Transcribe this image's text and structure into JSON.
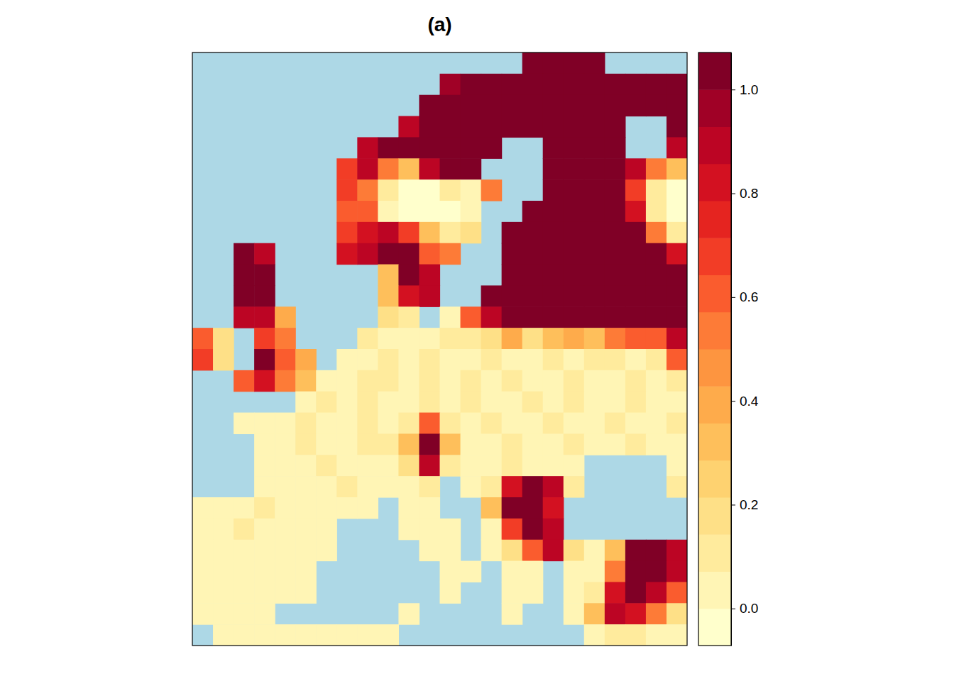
{
  "chart_data": {
    "type": "heatmap",
    "title": "(a)",
    "tick_labels": false,
    "color_range": [
      -0.0714,
      1.0714
    ],
    "color_ticks": [
      {
        "value": 0,
        "label": "0.0"
      },
      {
        "value": 0.2,
        "label": "0.2"
      },
      {
        "value": 0.4,
        "label": "0.4"
      },
      {
        "value": 0.6,
        "label": "0.6"
      },
      {
        "value": 0.8,
        "label": "0.8"
      },
      {
        "value": 1,
        "label": "1.0"
      }
    ],
    "cells": [
      [
        null,
        null,
        null,
        null,
        null,
        null,
        null,
        null,
        null,
        null,
        null,
        null,
        null,
        null,
        null,
        null,
        1.0,
        1.0,
        1.0,
        1.0,
        null,
        null,
        null,
        null
      ],
      [
        null,
        null,
        null,
        null,
        null,
        null,
        null,
        null,
        null,
        null,
        null,
        null,
        0.95,
        1.0,
        1.0,
        1.0,
        1.0,
        1.0,
        1.0,
        1.0,
        1.0,
        1.0,
        1.0,
        1.0
      ],
      [
        null,
        null,
        null,
        null,
        null,
        null,
        null,
        null,
        null,
        null,
        null,
        1.0,
        1.0,
        1.0,
        1.0,
        1.0,
        1.0,
        1.0,
        1.0,
        1.0,
        1.0,
        1.0,
        1.0,
        1.0
      ],
      [
        null,
        null,
        null,
        null,
        null,
        null,
        null,
        null,
        null,
        null,
        0.9,
        1.0,
        1.0,
        1.0,
        1.0,
        1.0,
        1.0,
        1.0,
        1.0,
        1.0,
        1.0,
        null,
        null,
        1.0
      ],
      [
        null,
        null,
        null,
        null,
        null,
        null,
        null,
        null,
        0.9,
        1.0,
        1.0,
        1.0,
        1.0,
        1.0,
        1.0,
        null,
        null,
        1.0,
        1.0,
        1.0,
        1.0,
        null,
        null,
        0.9
      ],
      [
        null,
        null,
        null,
        null,
        null,
        null,
        null,
        0.7,
        0.9,
        0.5,
        0.3,
        0.9,
        1.0,
        1.0,
        null,
        null,
        null,
        1.0,
        1.0,
        1.0,
        1.0,
        0.9,
        0.5,
        0.3
      ],
      [
        null,
        null,
        null,
        null,
        null,
        null,
        null,
        0.7,
        0.5,
        0.1,
        0,
        0,
        0.1,
        0.05,
        0.5,
        null,
        null,
        1.0,
        1.0,
        1.0,
        1.0,
        0.7,
        0.1,
        0
      ],
      [
        null,
        null,
        null,
        null,
        null,
        null,
        null,
        0.6,
        0.6,
        0.05,
        0,
        0,
        0,
        0.05,
        null,
        null,
        1.0,
        1.0,
        1.0,
        1.0,
        1.0,
        0.8,
        0.1,
        0
      ],
      [
        null,
        null,
        null,
        null,
        null,
        null,
        null,
        0.7,
        0.8,
        0.9,
        0.7,
        0.3,
        0.1,
        0.2,
        null,
        1.0,
        1.0,
        1.0,
        1.0,
        1.0,
        1.0,
        1.0,
        0.5,
        0.1
      ],
      [
        null,
        null,
        1.0,
        0.9,
        null,
        null,
        null,
        0.8,
        0.9,
        1.0,
        1.0,
        0.6,
        0.5,
        null,
        null,
        1.0,
        1.0,
        1.0,
        1.0,
        1.0,
        1.0,
        1.0,
        1.0,
        0.8
      ],
      [
        null,
        null,
        1.0,
        1.0,
        null,
        null,
        null,
        null,
        null,
        0.3,
        1.0,
        0.9,
        null,
        null,
        null,
        1.0,
        1.0,
        1.0,
        1.0,
        1.0,
        1.0,
        1.0,
        1.0,
        1.0
      ],
      [
        null,
        null,
        1.0,
        1.0,
        null,
        null,
        null,
        null,
        null,
        0.3,
        0.8,
        0.9,
        null,
        null,
        1.0,
        1.0,
        1.0,
        1.0,
        1.0,
        1.0,
        1.0,
        1.0,
        1.0,
        1.0
      ],
      [
        null,
        null,
        0.9,
        0.9,
        0.4,
        null,
        null,
        null,
        null,
        0.2,
        0.1,
        null,
        0.05,
        0.6,
        0.9,
        1.0,
        1.0,
        1.0,
        1.0,
        1.0,
        1.0,
        1.0,
        1.0,
        1.0
      ],
      [
        0.6,
        0.2,
        null,
        0.7,
        0.5,
        null,
        null,
        null,
        0.1,
        0.05,
        0.05,
        0.05,
        0.1,
        0.1,
        0.2,
        0.4,
        0.2,
        0.3,
        0.4,
        0.3,
        0.5,
        0.6,
        0.6,
        0.9
      ],
      [
        0.7,
        0.2,
        null,
        1.0,
        0.6,
        0.4,
        null,
        0.05,
        0.05,
        0.1,
        0.05,
        0.1,
        0.05,
        0.05,
        0.1,
        0.05,
        0.05,
        0.1,
        0.05,
        0.1,
        0.1,
        0.05,
        0.1,
        0.6
      ],
      [
        null,
        null,
        0.6,
        0.8,
        0.5,
        0.3,
        0.05,
        0.05,
        0.1,
        0.1,
        0.05,
        0.1,
        0.05,
        0.1,
        0.05,
        0.1,
        0.05,
        0.05,
        0.1,
        0.05,
        0.05,
        0.1,
        0.05,
        0.1
      ],
      [
        null,
        null,
        null,
        null,
        null,
        0.05,
        0.1,
        0.05,
        0.1,
        0.05,
        0.05,
        0.1,
        0.05,
        0.1,
        0.05,
        0.05,
        0.1,
        0.05,
        0.1,
        0.05,
        0.05,
        0.1,
        0.05,
        0.05
      ],
      [
        null,
        null,
        0.05,
        0.05,
        0.05,
        0.1,
        0.05,
        0.05,
        0.1,
        0.05,
        0.1,
        0.6,
        0.1,
        0.05,
        0.1,
        0.05,
        0.05,
        0.1,
        0.05,
        0.05,
        0.1,
        0.05,
        0.05,
        0.1
      ],
      [
        null,
        null,
        null,
        0.05,
        0.05,
        0.1,
        0.05,
        0.05,
        0.1,
        0.1,
        0.3,
        1.0,
        0.3,
        0.05,
        0.05,
        0.1,
        0.05,
        0.05,
        0.1,
        0.05,
        0.05,
        0.1,
        0.05,
        0.05
      ],
      [
        null,
        null,
        null,
        0.05,
        0.05,
        0.05,
        0.1,
        0.05,
        0.05,
        0.05,
        0.2,
        0.9,
        0.1,
        0.05,
        0.05,
        0.1,
        0.05,
        0.05,
        0.05,
        null,
        null,
        null,
        null,
        0.05
      ],
      [
        null,
        null,
        null,
        0.05,
        0.05,
        0.05,
        0.05,
        0.1,
        0.05,
        0.05,
        0.05,
        0.1,
        null,
        0.05,
        0.1,
        0.8,
        1.0,
        0.9,
        0.1,
        null,
        null,
        null,
        null,
        0.1
      ],
      [
        0.05,
        0.05,
        0.05,
        0.1,
        0.05,
        0.05,
        0.05,
        0.05,
        0.05,
        null,
        0.05,
        0.05,
        null,
        null,
        0.3,
        1.0,
        1.0,
        0.8,
        null,
        null,
        null,
        null,
        null,
        null
      ],
      [
        0.05,
        0.05,
        0.1,
        0.05,
        0.05,
        0.05,
        0.05,
        null,
        null,
        null,
        0.05,
        0.05,
        0.05,
        null,
        0.05,
        0.7,
        1.0,
        0.9,
        null,
        null,
        null,
        null,
        null,
        null
      ],
      [
        0.05,
        0.05,
        0.05,
        0.05,
        0.05,
        0.05,
        0.05,
        null,
        null,
        null,
        null,
        0.05,
        0.05,
        null,
        0.05,
        0.2,
        0.6,
        0.9,
        0.2,
        0.05,
        0.3,
        1.0,
        1.0,
        0.9
      ],
      [
        0.05,
        0.05,
        0.05,
        0.05,
        0.05,
        0.05,
        null,
        null,
        null,
        null,
        null,
        null,
        0.05,
        0.05,
        null,
        0.05,
        0.05,
        null,
        0.05,
        0.05,
        0.5,
        1.0,
        1.0,
        0.9
      ],
      [
        0.05,
        0.05,
        0.05,
        0.05,
        0.05,
        0.05,
        null,
        null,
        null,
        null,
        null,
        null,
        0.05,
        null,
        null,
        0.05,
        0.05,
        null,
        0.05,
        0.1,
        0.8,
        1.0,
        0.9,
        0.6
      ],
      [
        0.05,
        0.05,
        0.05,
        0.05,
        null,
        null,
        null,
        null,
        null,
        null,
        0.05,
        null,
        null,
        null,
        null,
        0.05,
        null,
        null,
        0.05,
        0.3,
        0.9,
        0.8,
        0.5,
        0.2
      ],
      [
        null,
        0.05,
        0.05,
        0.05,
        0.05,
        0.05,
        0.05,
        0.05,
        0.05,
        0.05,
        null,
        null,
        null,
        null,
        null,
        null,
        null,
        null,
        null,
        0.05,
        0.1,
        0.1,
        0.05,
        0.05
      ]
    ]
  }
}
